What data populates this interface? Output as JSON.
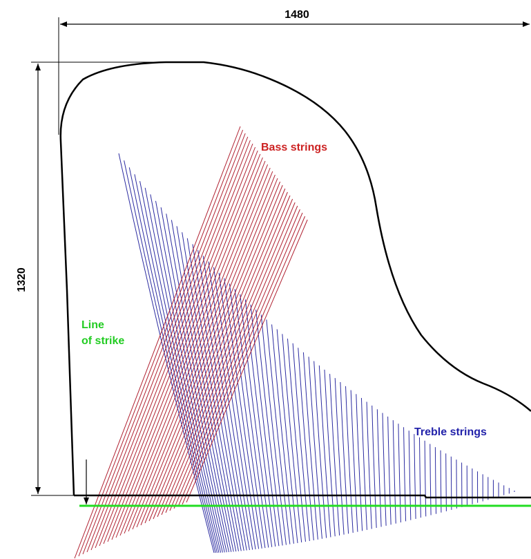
{
  "dimensions": {
    "width": 1480,
    "height": 1320
  },
  "labels": {
    "bass": "Bass strings",
    "treble": "Treble strings",
    "strike": [
      "Line",
      "of strike"
    ]
  }
}
